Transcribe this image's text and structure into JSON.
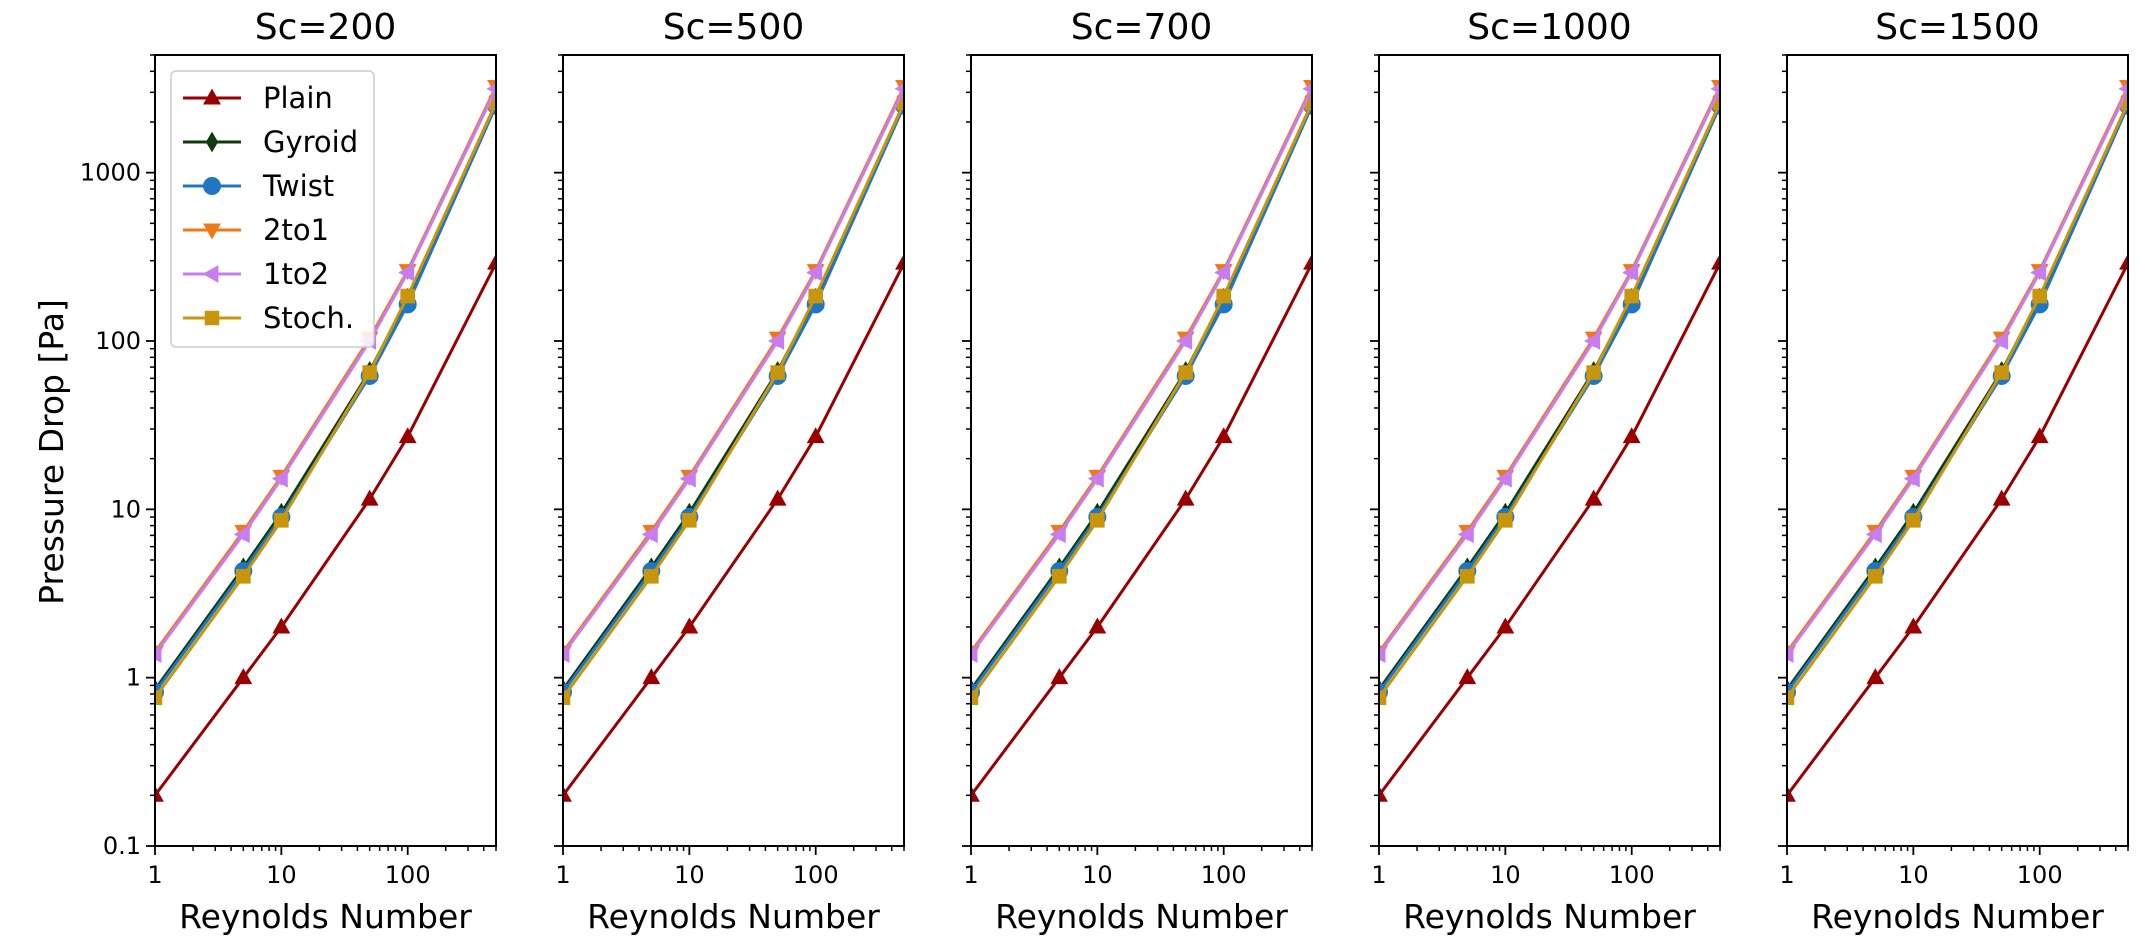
{
  "chart_data": {
    "type": "line",
    "y_label": "Pressure Drop [Pa]",
    "x_scale": "log",
    "y_scale": "log",
    "xlim": [
      1,
      500
    ],
    "ylim": [
      0.1,
      5000
    ],
    "x_ticks": [
      {
        "value": 1,
        "label": "1"
      },
      {
        "value": 10,
        "label": "10"
      },
      {
        "value": 100,
        "label": "100"
      }
    ],
    "y_ticks": [
      {
        "value": 0.1,
        "label": "0.1"
      },
      {
        "value": 1,
        "label": "1"
      },
      {
        "value": 10,
        "label": "10"
      },
      {
        "value": 100,
        "label": "100"
      },
      {
        "value": 1000,
        "label": "1000"
      }
    ],
    "grid": false,
    "legend": {
      "placement": "top-left",
      "panel_index": 0
    },
    "series": [
      {
        "name": "Plain",
        "color": "#990000",
        "marker": "triangle-up",
        "x": [
          1,
          5,
          10,
          50,
          100,
          500
        ],
        "y": [
          0.2,
          1.0,
          2.0,
          11.5,
          27,
          290
        ]
      },
      {
        "name": "Gyroid",
        "color": "#0d3b0d",
        "marker": "diamond",
        "x": [
          1,
          5,
          10,
          50,
          100,
          500
        ],
        "y": [
          0.85,
          4.5,
          9.5,
          66,
          180,
          2600
        ]
      },
      {
        "name": "Twist",
        "color": "#1f77c4",
        "marker": "circle",
        "x": [
          1,
          5,
          10,
          50,
          100,
          500
        ],
        "y": [
          0.82,
          4.3,
          9.0,
          62,
          165,
          2500
        ]
      },
      {
        "name": "2to1",
        "color": "#f07818",
        "marker": "triangle-down",
        "x": [
          1,
          5,
          10,
          50,
          100,
          500
        ],
        "y": [
          1.42,
          7.4,
          15.7,
          104,
          262,
          3250
        ]
      },
      {
        "name": "1to2",
        "color": "#c77cf0",
        "marker": "triangle-left",
        "x": [
          1,
          5,
          10,
          50,
          100,
          500
        ],
        "y": [
          1.38,
          7.1,
          15.2,
          100,
          255,
          3150
        ]
      },
      {
        "name": "Stoch.",
        "color": "#c8960c",
        "marker": "square",
        "x": [
          1,
          5,
          10,
          50,
          100,
          500
        ],
        "y": [
          0.76,
          4.0,
          8.6,
          65,
          185,
          2600
        ]
      }
    ],
    "panels": [
      {
        "title": "Sc=200",
        "xlabel": "Reynolds Number"
      },
      {
        "title": "Sc=500",
        "xlabel": "Reynolds Number"
      },
      {
        "title": "Sc=700",
        "xlabel": "Reynolds Number"
      },
      {
        "title": "Sc=1000",
        "xlabel": "Reynolds Number"
      },
      {
        "title": "Sc=1500",
        "xlabel": "Reynolds Number"
      }
    ]
  }
}
